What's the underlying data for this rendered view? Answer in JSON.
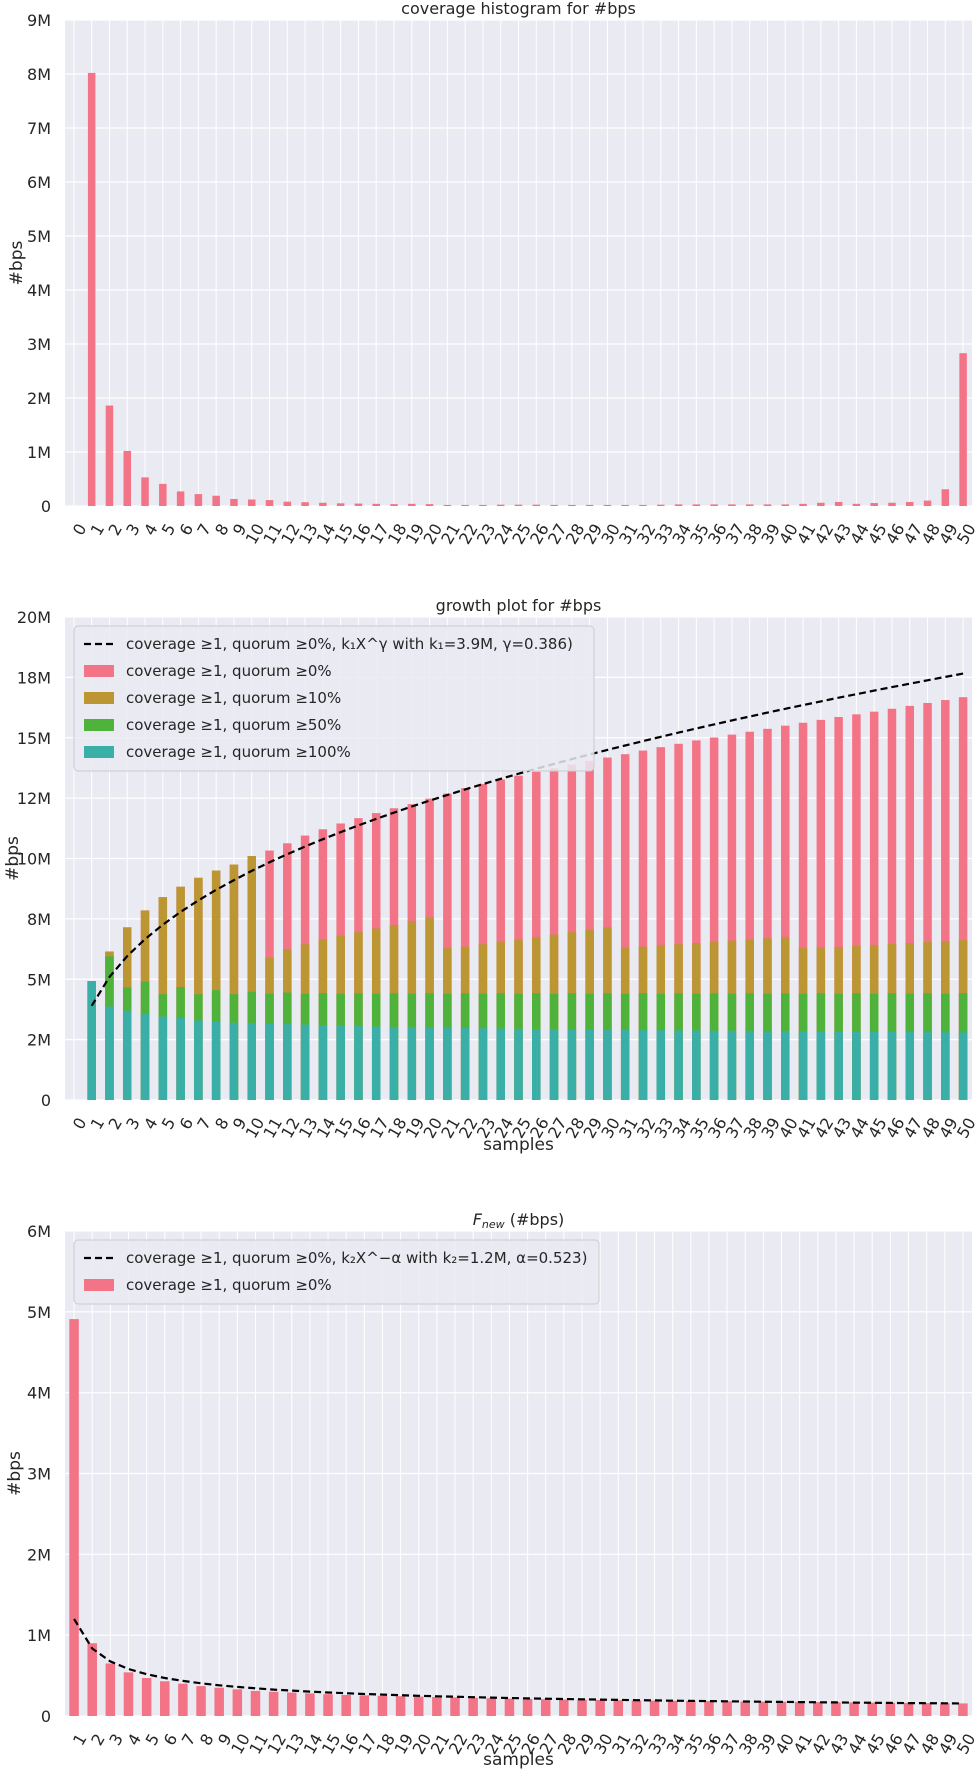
{
  "colors": {
    "pink": "#f37486",
    "gold": "#bb9633",
    "green": "#4fb33b",
    "teal": "#3aafa7",
    "panel_bg": "#eaeaf2",
    "grid": "#ffffff",
    "fit_line": "#000000"
  },
  "chart_data": [
    {
      "type": "bar",
      "title": "coverage histogram for #bps",
      "xlabel": "",
      "ylabel": "#bps",
      "ylim": [
        0,
        9000000
      ],
      "yticks": [
        {
          "value": 0,
          "label": "0"
        },
        {
          "value": 1000000,
          "label": "1M"
        },
        {
          "value": 2000000,
          "label": "2M"
        },
        {
          "value": 3000000,
          "label": "3M"
        },
        {
          "value": 4000000,
          "label": "4M"
        },
        {
          "value": 5000000,
          "label": "5M"
        },
        {
          "value": 6000000,
          "label": "6M"
        },
        {
          "value": 7000000,
          "label": "7M"
        },
        {
          "value": 8000000,
          "label": "8M"
        },
        {
          "value": 9000000,
          "label": "9M"
        }
      ],
      "grid": true,
      "legend": null,
      "categories": [
        "0",
        "1",
        "2",
        "3",
        "4",
        "5",
        "6",
        "7",
        "8",
        "9",
        "10",
        "11",
        "12",
        "13",
        "14",
        "15",
        "16",
        "17",
        "18",
        "19",
        "20",
        "21",
        "22",
        "23",
        "24",
        "25",
        "26",
        "27",
        "28",
        "29",
        "30",
        "31",
        "32",
        "33",
        "34",
        "35",
        "36",
        "37",
        "38",
        "39",
        "40",
        "41",
        "42",
        "43",
        "44",
        "45",
        "46",
        "47",
        "48",
        "49",
        "50"
      ],
      "series": [
        {
          "color": "#f37486",
          "values": [
            0,
            8020000,
            1860000,
            1020000,
            530000,
            410000,
            270000,
            220000,
            190000,
            130000,
            120000,
            110000,
            80000,
            70000,
            60000,
            50000,
            45000,
            40000,
            35000,
            40000,
            35000,
            20000,
            20000,
            20000,
            25000,
            25000,
            25000,
            20000,
            20000,
            20000,
            20000,
            20000,
            20000,
            25000,
            30000,
            30000,
            30000,
            30000,
            30000,
            30000,
            30000,
            40000,
            60000,
            75000,
            40000,
            55000,
            60000,
            75000,
            100000,
            310000,
            2830000
          ]
        }
      ]
    },
    {
      "type": "bar",
      "stacked": false,
      "title": "growth plot for #bps",
      "xlabel": "samples",
      "ylabel": "#bps",
      "ylim": [
        0,
        20000000
      ],
      "yticks": [
        {
          "value": 0,
          "label": "0"
        },
        {
          "value": 2500000,
          "label": "2M"
        },
        {
          "value": 5000000,
          "label": "5M"
        },
        {
          "value": 7500000,
          "label": "8M"
        },
        {
          "value": 10000000,
          "label": "10M"
        },
        {
          "value": 12500000,
          "label": "12M"
        },
        {
          "value": 15000000,
          "label": "15M"
        },
        {
          "value": 17500000,
          "label": "18M"
        },
        {
          "value": 20000000,
          "label": "20M"
        }
      ],
      "grid": true,
      "legend": "top-left",
      "categories": [
        "0",
        "1",
        "2",
        "3",
        "4",
        "5",
        "6",
        "7",
        "8",
        "9",
        "10",
        "11",
        "12",
        "13",
        "14",
        "15",
        "16",
        "17",
        "18",
        "19",
        "20",
        "21",
        "22",
        "23",
        "24",
        "25",
        "26",
        "27",
        "28",
        "29",
        "30",
        "31",
        "32",
        "33",
        "34",
        "35",
        "36",
        "37",
        "38",
        "39",
        "40",
        "41",
        "42",
        "43",
        "44",
        "45",
        "46",
        "47",
        "48",
        "49",
        "50"
      ],
      "legend_entries": [
        {
          "label": "coverage ≥1, quorum ≥0%, k₁X^γ with k₁=3.9M, γ=0.386)",
          "kind": "line",
          "color": "#000000"
        },
        {
          "label": "coverage ≥1, quorum ≥0%",
          "kind": "bar",
          "color": "#f37486"
        },
        {
          "label": "coverage ≥1, quorum ≥10%",
          "kind": "bar",
          "color": "#bb9633"
        },
        {
          "label": "coverage ≥1, quorum ≥50%",
          "kind": "bar",
          "color": "#4fb33b"
        },
        {
          "label": "coverage ≥1, quorum ≥100%",
          "kind": "bar",
          "color": "#3aafa7"
        }
      ],
      "series": [
        {
          "name": "coverage ≥1, quorum ≥0%",
          "color": "#f37486",
          "values": [
            0,
            4920000,
            6150000,
            7150000,
            7850000,
            8400000,
            8830000,
            9200000,
            9500000,
            9750000,
            10100000,
            10330000,
            10630000,
            10950000,
            11210000,
            11450000,
            11670000,
            11880000,
            12080000,
            12250000,
            12480000,
            12690000,
            12910000,
            13090000,
            13270000,
            13430000,
            13590000,
            13740000,
            13890000,
            14040000,
            14180000,
            14320000,
            14470000,
            14610000,
            14750000,
            14890000,
            15010000,
            15130000,
            15250000,
            15370000,
            15500000,
            15620000,
            15740000,
            15860000,
            15970000,
            16080000,
            16200000,
            16320000,
            16440000,
            16560000,
            16680000
          ]
        },
        {
          "name": "coverage ≥1, quorum ≥10%",
          "color": "#bb9633",
          "values": [
            0,
            4920000,
            6150000,
            7150000,
            7850000,
            8400000,
            8830000,
            9200000,
            9500000,
            9750000,
            10100000,
            5900000,
            6250000,
            6450000,
            6650000,
            6800000,
            6950000,
            7100000,
            7250000,
            7400000,
            7550000,
            6300000,
            6350000,
            6450000,
            6550000,
            6650000,
            6750000,
            6850000,
            6950000,
            7050000,
            7150000,
            6300000,
            6350000,
            6400000,
            6450000,
            6500000,
            6550000,
            6600000,
            6650000,
            6700000,
            6750000,
            6300000,
            6320000,
            6340000,
            6380000,
            6420000,
            6460000,
            6500000,
            6540000,
            6580000,
            6620000
          ]
        },
        {
          "name": "coverage ≥1, quorum ≥50%",
          "color": "#4fb33b",
          "values": [
            0,
            4920000,
            5950000,
            4660000,
            4900000,
            4380000,
            4680000,
            4380000,
            4550000,
            4380000,
            4480000,
            4400000,
            4450000,
            4400000,
            4420000,
            4400000,
            4420000,
            4400000,
            4420000,
            4400000,
            4420000,
            4400000,
            4420000,
            4400000,
            4420000,
            4400000,
            4420000,
            4400000,
            4420000,
            4400000,
            4420000,
            4400000,
            4420000,
            4400000,
            4420000,
            4400000,
            4420000,
            4400000,
            4420000,
            4400000,
            4420000,
            4400000,
            4420000,
            4400000,
            4420000,
            4400000,
            4420000,
            4400000,
            4420000,
            4400000,
            4420000
          ]
        },
        {
          "name": "coverage ≥1, quorum ≥100%",
          "color": "#3aafa7",
          "values": [
            0,
            4920000,
            3870000,
            3700000,
            3560000,
            3450000,
            3400000,
            3300000,
            3250000,
            3200000,
            3180000,
            3160000,
            3140000,
            3120000,
            3100000,
            3080000,
            3060000,
            3040000,
            3020000,
            3010000,
            3000000,
            2990000,
            2980000,
            2970000,
            2960000,
            2950000,
            2940000,
            2930000,
            2920000,
            2910000,
            2900000,
            2895000,
            2890000,
            2885000,
            2880000,
            2875000,
            2870000,
            2865000,
            2860000,
            2855000,
            2850000,
            2845000,
            2840000,
            2835000,
            2830000,
            2825000,
            2820000,
            2815000,
            2810000,
            2805000,
            2800000
          ]
        }
      ],
      "fit": {
        "label": "coverage ≥1, quorum ≥0%, k₁X^γ with k₁=3.9M, γ=0.386)",
        "k": 3900000,
        "exponent": 0.386,
        "x_from": 1,
        "x_to": 50,
        "style": "dashed"
      }
    },
    {
      "type": "bar",
      "title": "F_new (#bps)",
      "xlabel": "samples",
      "ylabel": "#bps",
      "ylim": [
        0,
        6000000
      ],
      "yticks": [
        {
          "value": 0,
          "label": "0"
        },
        {
          "value": 1000000,
          "label": "1M"
        },
        {
          "value": 2000000,
          "label": "2M"
        },
        {
          "value": 3000000,
          "label": "3M"
        },
        {
          "value": 4000000,
          "label": "4M"
        },
        {
          "value": 5000000,
          "label": "5M"
        },
        {
          "value": 6000000,
          "label": "6M"
        }
      ],
      "grid": true,
      "legend": "top-left",
      "categories": [
        "1",
        "2",
        "3",
        "4",
        "5",
        "6",
        "7",
        "8",
        "9",
        "10",
        "11",
        "12",
        "13",
        "14",
        "15",
        "16",
        "17",
        "18",
        "19",
        "20",
        "21",
        "22",
        "23",
        "24",
        "25",
        "26",
        "27",
        "28",
        "29",
        "30",
        "31",
        "32",
        "33",
        "34",
        "35",
        "36",
        "37",
        "38",
        "39",
        "40",
        "41",
        "42",
        "43",
        "44",
        "45",
        "46",
        "47",
        "48",
        "49",
        "50"
      ],
      "legend_entries": [
        {
          "label": "coverage ≥1, quorum ≥0%, k₂X^−α with k₂=1.2M, α=0.523)",
          "kind": "line",
          "color": "#000000"
        },
        {
          "label": "coverage ≥1, quorum ≥0%",
          "kind": "bar",
          "color": "#f37486"
        }
      ],
      "series": [
        {
          "name": "coverage ≥1, quorum ≥0%",
          "color": "#f37486",
          "values": [
            4910000,
            900000,
            650000,
            540000,
            470000,
            430000,
            400000,
            370000,
            350000,
            330000,
            310000,
            300000,
            290000,
            280000,
            270000,
            260000,
            255000,
            250000,
            245000,
            240000,
            235000,
            230000,
            225000,
            220000,
            215000,
            210000,
            207000,
            204000,
            201000,
            198000,
            195000,
            192000,
            190000,
            188000,
            186000,
            184000,
            182000,
            180000,
            178000,
            176000,
            174000,
            172000,
            170000,
            168000,
            166000,
            164000,
            162000,
            160000,
            158000,
            156000
          ]
        }
      ],
      "fit": {
        "label": "coverage ≥1, quorum ≥0%, k₂X^−α with k₂=1.2M, α=0.523)",
        "k": 1200000,
        "exponent": -0.523,
        "x_from": 1,
        "x_to": 50,
        "style": "dashed"
      }
    }
  ]
}
